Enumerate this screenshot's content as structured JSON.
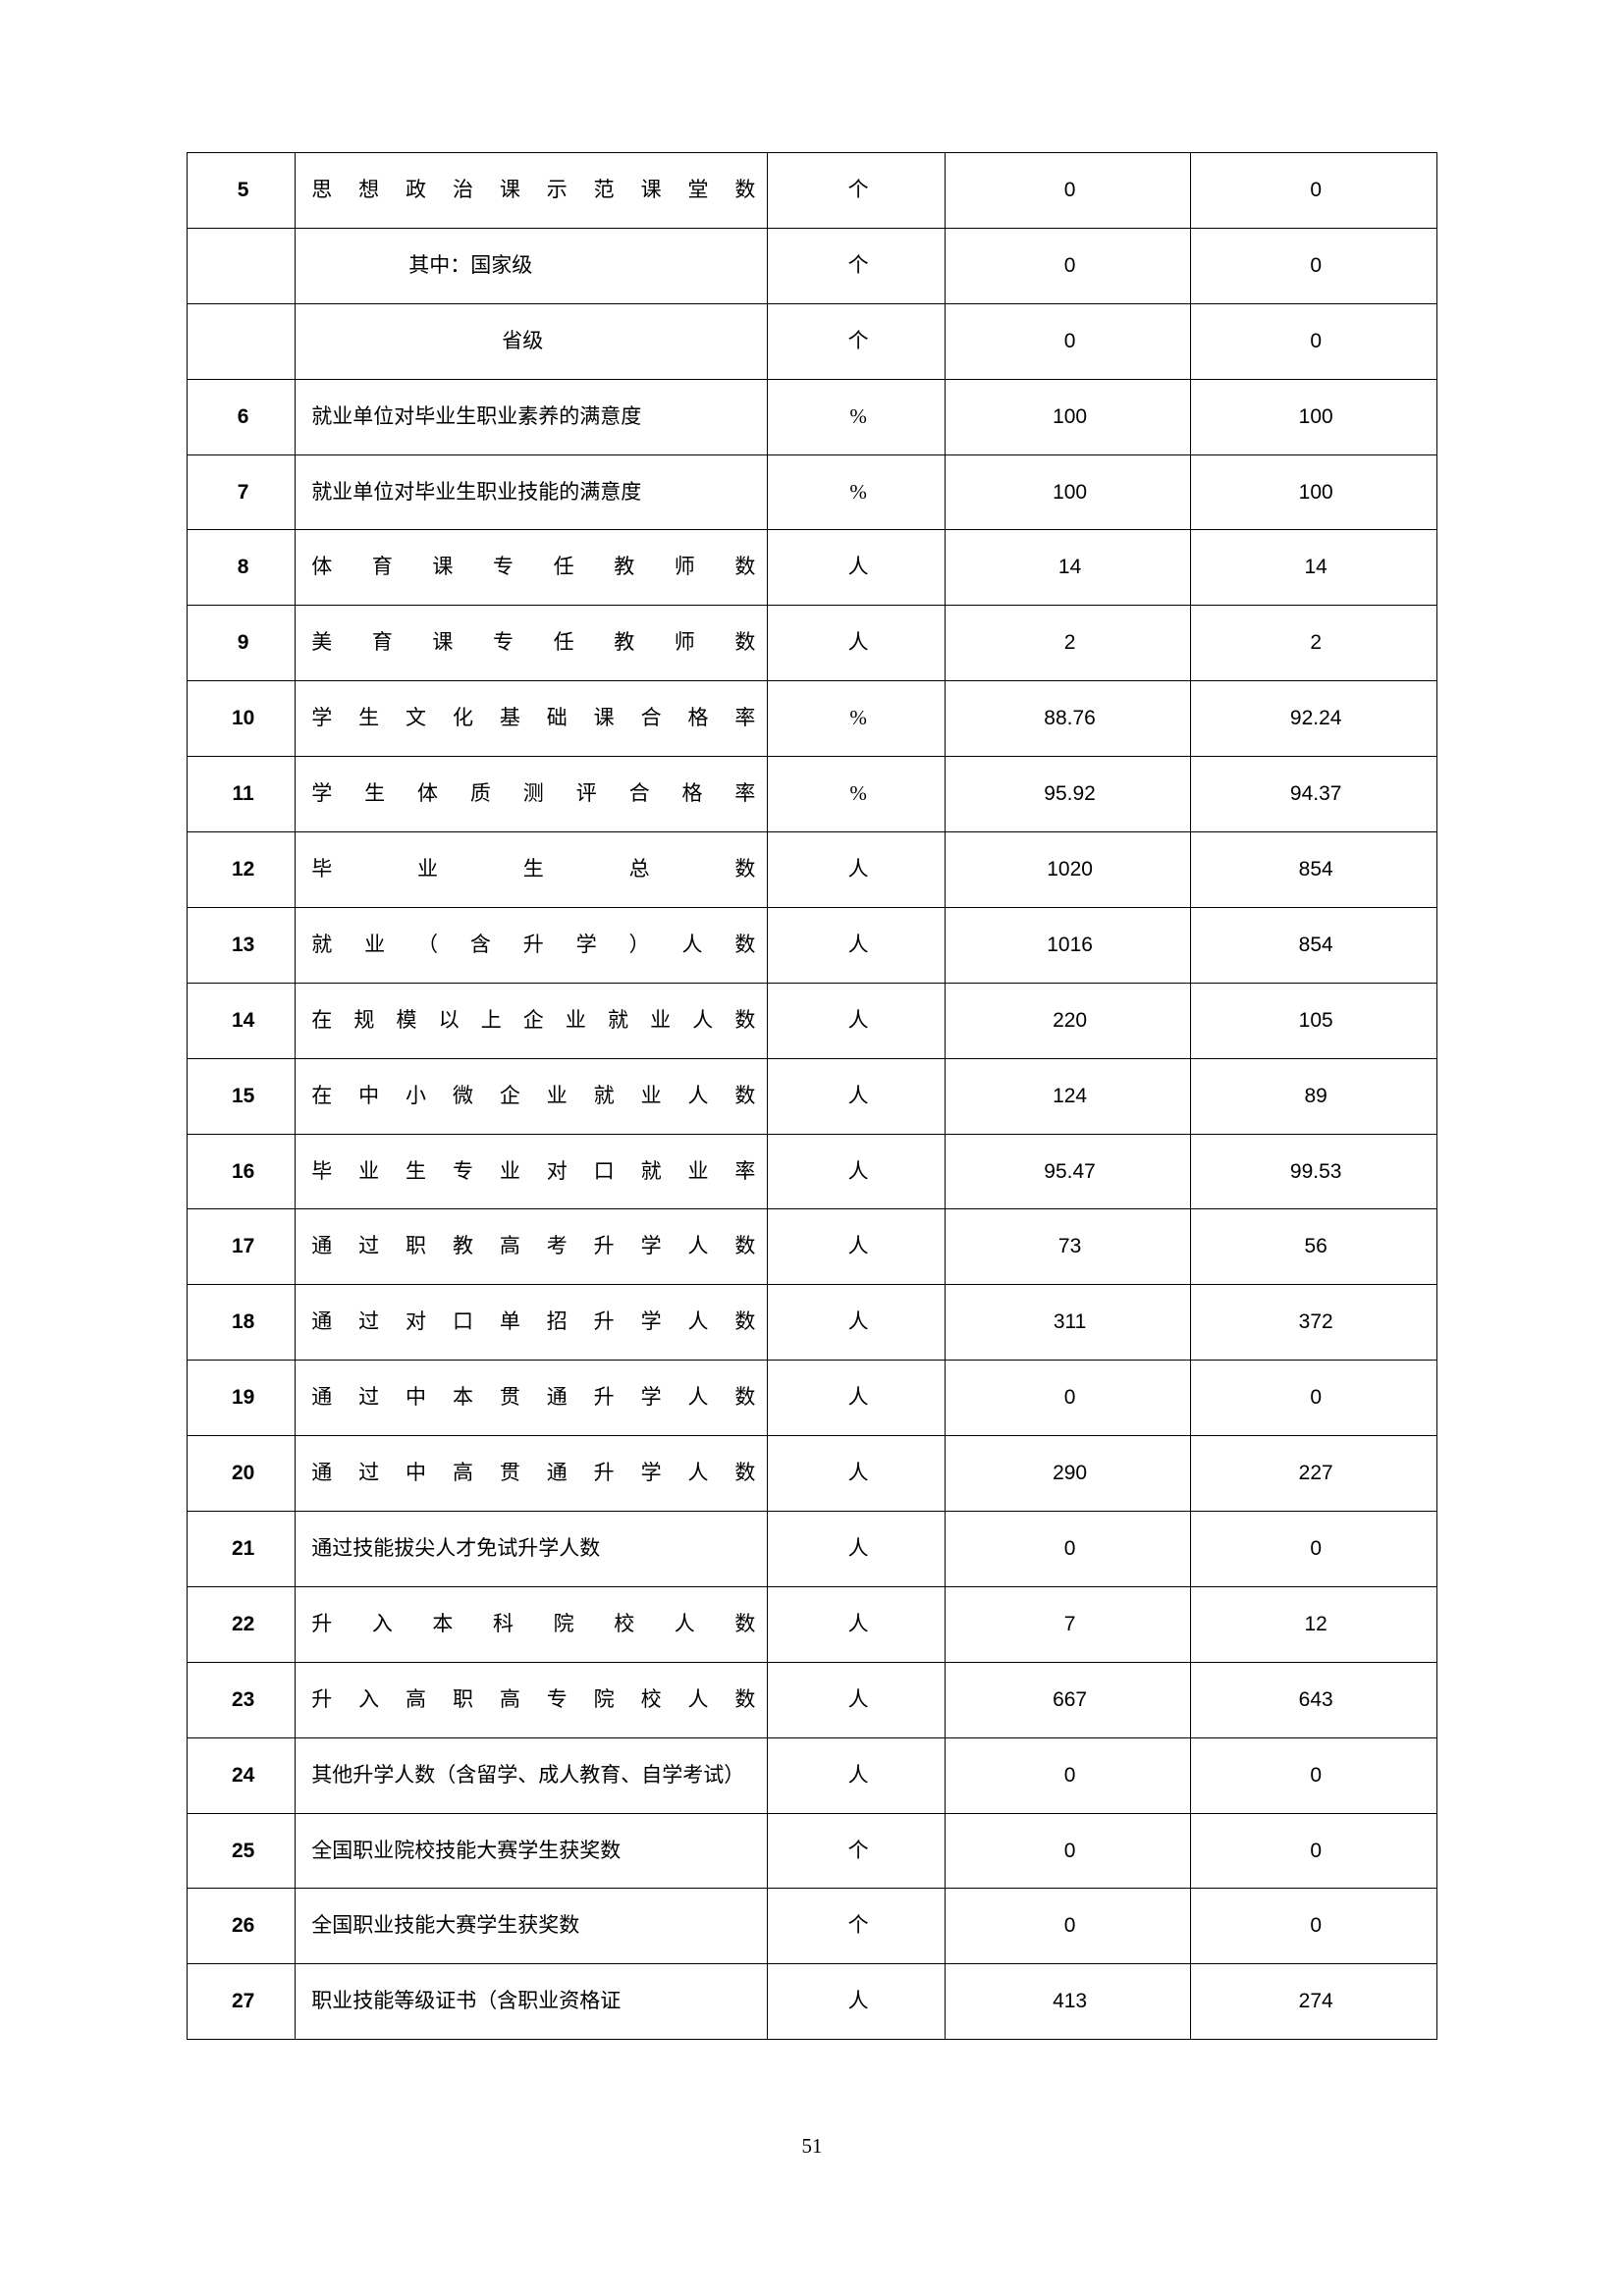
{
  "page_number": "51",
  "table": {
    "columns": [
      "index",
      "description",
      "unit",
      "value_a",
      "value_b"
    ],
    "border_color": "#000000",
    "background_color": "#ffffff",
    "font_size_pt": 16,
    "rows": [
      {
        "idx": "5",
        "desc": "思想政治课示范课堂数",
        "indent": 0,
        "unit": "个",
        "a": "0",
        "b": "0"
      },
      {
        "idx": "",
        "desc": "其中：国家级",
        "indent": 1,
        "unit": "个",
        "a": "0",
        "b": "0"
      },
      {
        "idx": "",
        "desc": "省级",
        "indent": 2,
        "unit": "个",
        "a": "0",
        "b": "0"
      },
      {
        "idx": "6",
        "desc": "就业单位对毕业生职业素养的满意度",
        "indent": 0,
        "nojust": true,
        "unit": "%",
        "a": "100",
        "b": "100"
      },
      {
        "idx": "7",
        "desc": "就业单位对毕业生职业技能的满意度",
        "indent": 0,
        "nojust": true,
        "unit": "%",
        "a": "100",
        "b": "100"
      },
      {
        "idx": "8",
        "desc": "体育课专任教师数",
        "indent": 0,
        "unit": "人",
        "a": "14",
        "b": "14"
      },
      {
        "idx": "9",
        "desc": "美育课专任教师数",
        "indent": 0,
        "unit": "人",
        "a": "2",
        "b": "2"
      },
      {
        "idx": "10",
        "desc": "学生文化基础课合格率",
        "indent": 0,
        "unit": "%",
        "a": "88.76",
        "b": "92.24"
      },
      {
        "idx": "11",
        "desc": "学生体质测评合格率",
        "indent": 0,
        "unit": "%",
        "a": "95.92",
        "b": "94.37"
      },
      {
        "idx": "12",
        "desc": "毕业生总数",
        "indent": 0,
        "unit": "人",
        "a": "1020",
        "b": "854"
      },
      {
        "idx": "13",
        "desc": "就业（含升学）人数",
        "indent": 0,
        "unit": "人",
        "a": "1016",
        "b": "854"
      },
      {
        "idx": "14",
        "desc": "在规模以上企业就业人数",
        "indent": 0,
        "unit": "人",
        "a": "220",
        "b": "105"
      },
      {
        "idx": "15",
        "desc": "在中小微企业就业人数",
        "indent": 0,
        "unit": "人",
        "a": "124",
        "b": "89"
      },
      {
        "idx": "16",
        "desc": "毕业生专业对口就业率",
        "indent": 0,
        "unit": "人",
        "a": "95.47",
        "b": "99.53"
      },
      {
        "idx": "17",
        "desc": "通过职教高考升学人数",
        "indent": 0,
        "unit": "人",
        "a": "73",
        "b": "56"
      },
      {
        "idx": "18",
        "desc": "通过对口单招升学人数",
        "indent": 0,
        "unit": "人",
        "a": "311",
        "b": "372"
      },
      {
        "idx": "19",
        "desc": "通过中本贯通升学人数",
        "indent": 0,
        "unit": "人",
        "a": "0",
        "b": "0"
      },
      {
        "idx": "20",
        "desc": "通过中高贯通升学人数",
        "indent": 0,
        "unit": "人",
        "a": "290",
        "b": "227"
      },
      {
        "idx": "21",
        "desc": "通过技能拔尖人才免试升学人数",
        "indent": 0,
        "nojust": true,
        "unit": "人",
        "a": "0",
        "b": "0"
      },
      {
        "idx": "22",
        "desc": "升入本科院校人数",
        "indent": 0,
        "unit": "人",
        "a": "7",
        "b": "12"
      },
      {
        "idx": "23",
        "desc": "升入高职高专院校人数",
        "indent": 0,
        "unit": "人",
        "a": "667",
        "b": "643"
      },
      {
        "idx": "24",
        "desc": "其他升学人数（含留学、成人教育、自学考试）",
        "indent": 0,
        "nojust": true,
        "unit": "人",
        "a": "0",
        "b": "0"
      },
      {
        "idx": "25",
        "desc": "全国职业院校技能大赛学生获奖数",
        "indent": 0,
        "nojust": true,
        "unit": "个",
        "a": "0",
        "b": "0"
      },
      {
        "idx": "26",
        "desc": "全国职业技能大赛学生获奖数",
        "indent": 0,
        "nojust": true,
        "unit": "个",
        "a": "0",
        "b": "0"
      },
      {
        "idx": "27",
        "desc": "职业技能等级证书（含职业资格证",
        "indent": 0,
        "nojust": true,
        "unit": "人",
        "a": "413",
        "b": "274"
      }
    ]
  }
}
